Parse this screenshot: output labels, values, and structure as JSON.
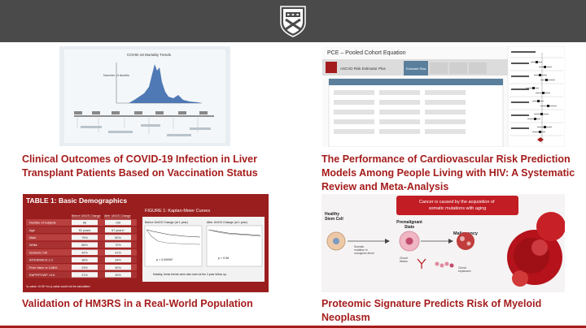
{
  "header": {
    "logo_icon": "university-shield-icon",
    "bg": "#4a4a4a"
  },
  "accent": "#a51c1c",
  "cards": [
    {
      "title": "Clinical Outcomes of COVID-19 Infection in Liver Transplant Patients Based on Vaccination Status",
      "thumb": {
        "heading": "COVID-19 Mortality Trends",
        "ylabel": "Number of deaths"
      }
    },
    {
      "title": "The Performance of Cardiovascular Risk Prediction Models Among People Living with HIV: A Systematic Review and Meta-Analysis",
      "thumb": {
        "heading": "PCE – Pooled Cohort Equation",
        "app": "ASCVD Risk Estimator Plus",
        "tab": "Estimate Risk"
      }
    },
    {
      "title": "Validation of HM3RS in a Real-World Population",
      "thumb": {
        "table_title": "TABLE 1: Basic Demographics",
        "col_before": "Before UNOS Change",
        "col_after": "After UNOS Change",
        "rows": [
          [
            "Number of subjects",
            "66",
            "106"
          ],
          [
            "Age",
            "62 years",
            "57 years*"
          ],
          [
            "Male",
            "79%",
            "80%"
          ],
          [
            "White",
            "66%",
            "72%"
          ],
          [
            "Ischemic CM",
            "42%",
            "41%"
          ],
          [
            "INTERMACS 1-2",
            "38%",
            "34%"
          ],
          [
            "Prior Valve or CABG",
            "23%",
            "30%"
          ],
          [
            "RAPP/PCWP >0.6",
            "21%",
            "30%"
          ]
        ],
        "footnote": "*p-value <0.05   ^no p-value could not be calculated",
        "fig_title": "FIGURE 1: Kaplan-Meier Curves",
        "panel1": "Before UNOS Change (at 1 year)",
        "panel2": "After UNOS Change (at 1 year)",
        "p1": "p = 0.00006*",
        "p2": "p = 0.96",
        "note": "Notably, these trends were also seen at the 2-year follow up."
      }
    },
    {
      "title": "Proteomic Signature Predicts Risk of Myeloid Neoplasm",
      "thumb": {
        "banner": "Cancer is caused by the acquisition of somatic mutations with aging",
        "stage1": "Healthy Stem Cell",
        "stage2": "Premalignant State",
        "stage3": "Malignancy",
        "small1": "Somatic mutation in oncogenic driver",
        "small2": "Clonal fitness",
        "small3": "Clonal expansion"
      }
    }
  ]
}
